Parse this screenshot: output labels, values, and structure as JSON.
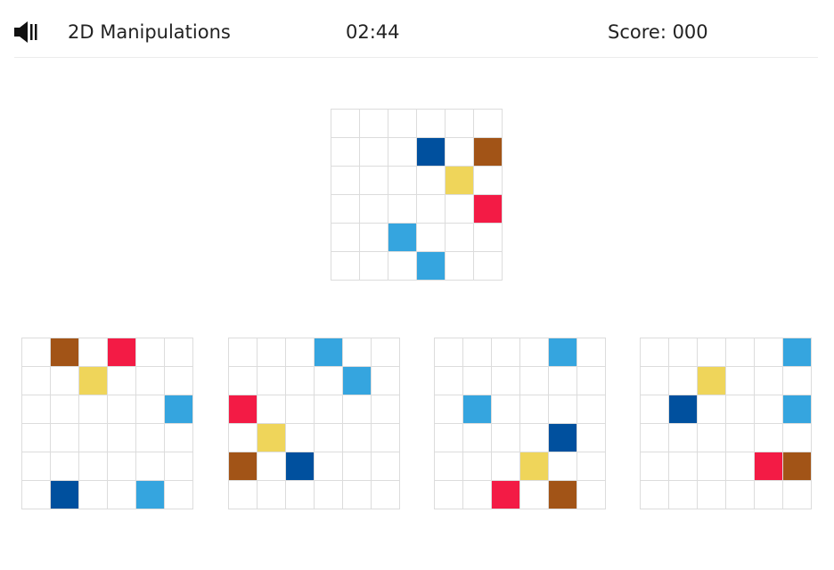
{
  "header": {
    "sound_icon": "speaker-icon",
    "title": "2D Manipulations",
    "timer": "02:44",
    "score": "Score: 000"
  },
  "colors": {
    "N": "#00509e",
    "B": "#a25417",
    "Y": "#efd55a",
    "R": "#f31b45",
    "L": "#35a5df",
    "empty": "#ffffff",
    "grid_line": "#dcdcdc"
  },
  "grid_size": 6,
  "target": {
    "cells": [
      "......",
      "...N.B",
      "....Y.",
      ".....R",
      "..L...",
      "...L.."
    ]
  },
  "options": [
    {
      "cells": [
        ".B.R..",
        "..Y...",
        ".....L",
        "......",
        "......",
        ".N..L."
      ]
    },
    {
      "cells": [
        "...L..",
        "....L.",
        "R.....",
        ".Y....",
        "B.N...",
        "......"
      ]
    },
    {
      "cells": [
        "....L.",
        "......",
        ".L....",
        "....N.",
        "...Y..",
        "..R.B."
      ]
    },
    {
      "cells": [
        ".....L",
        "..Y...",
        ".N...L",
        "......",
        "....RB",
        "......"
      ]
    }
  ]
}
